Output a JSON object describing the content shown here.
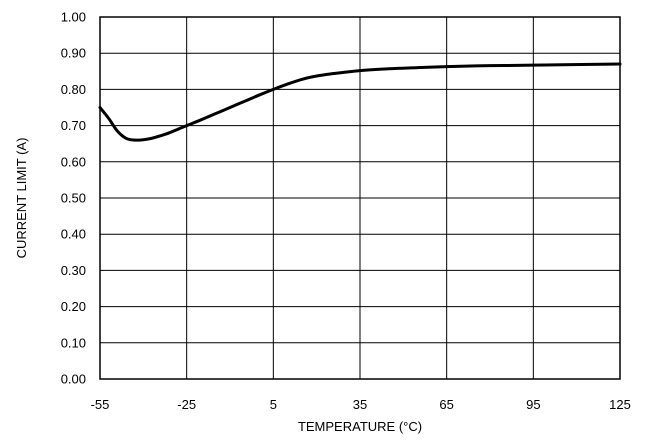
{
  "chart_data": {
    "type": "line",
    "xlabel": "TEMPERATURE (°C)",
    "ylabel": "CURRENT LIMIT (A)",
    "xlim": [
      -55,
      125
    ],
    "ylim": [
      0,
      1.0
    ],
    "x_ticks": [
      -55,
      -25,
      5,
      35,
      65,
      95,
      125
    ],
    "y_ticks": [
      0,
      0.1,
      0.2,
      0.3,
      0.4,
      0.5,
      0.6,
      0.7,
      0.8,
      0.9,
      1.0
    ],
    "x_tick_labels": [
      "-55",
      "-25",
      "5",
      "35",
      "65",
      "95",
      "125"
    ],
    "y_tick_labels": [
      "0.00",
      "0.10",
      "0.20",
      "0.30",
      "0.40",
      "0.50",
      "0.60",
      "0.70",
      "0.80",
      "0.90",
      "1.00"
    ],
    "grid": true,
    "series": [
      {
        "x": [
          -55,
          -52,
          -49,
          -46,
          -43,
          -40,
          -37,
          -34,
          -31,
          -28,
          -25,
          -20,
          -15,
          -10,
          -5,
          0,
          5,
          10,
          15,
          20,
          25,
          35,
          45,
          55,
          65,
          75,
          85,
          95,
          105,
          115,
          125
        ],
        "y": [
          0.75,
          0.72,
          0.685,
          0.665,
          0.66,
          0.661,
          0.665,
          0.672,
          0.68,
          0.69,
          0.7,
          0.716,
          0.733,
          0.75,
          0.767,
          0.784,
          0.8,
          0.815,
          0.828,
          0.837,
          0.843,
          0.852,
          0.857,
          0.86,
          0.863,
          0.865,
          0.866,
          0.867,
          0.868,
          0.869,
          0.87
        ]
      }
    ]
  }
}
